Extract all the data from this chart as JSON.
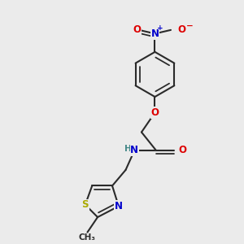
{
  "bg_color": "#ebebeb",
  "bond_color": "#2a2a2a",
  "bond_width": 1.5,
  "dbo": 0.012,
  "atom_colors": {
    "N": "#0000cc",
    "O": "#dd0000",
    "S": "#aaaa00",
    "C": "#2a2a2a",
    "H": "#448888"
  },
  "font_size": 8.5,
  "small_font": 7.5,
  "figsize": [
    3.0,
    3.0
  ],
  "dpi": 100
}
